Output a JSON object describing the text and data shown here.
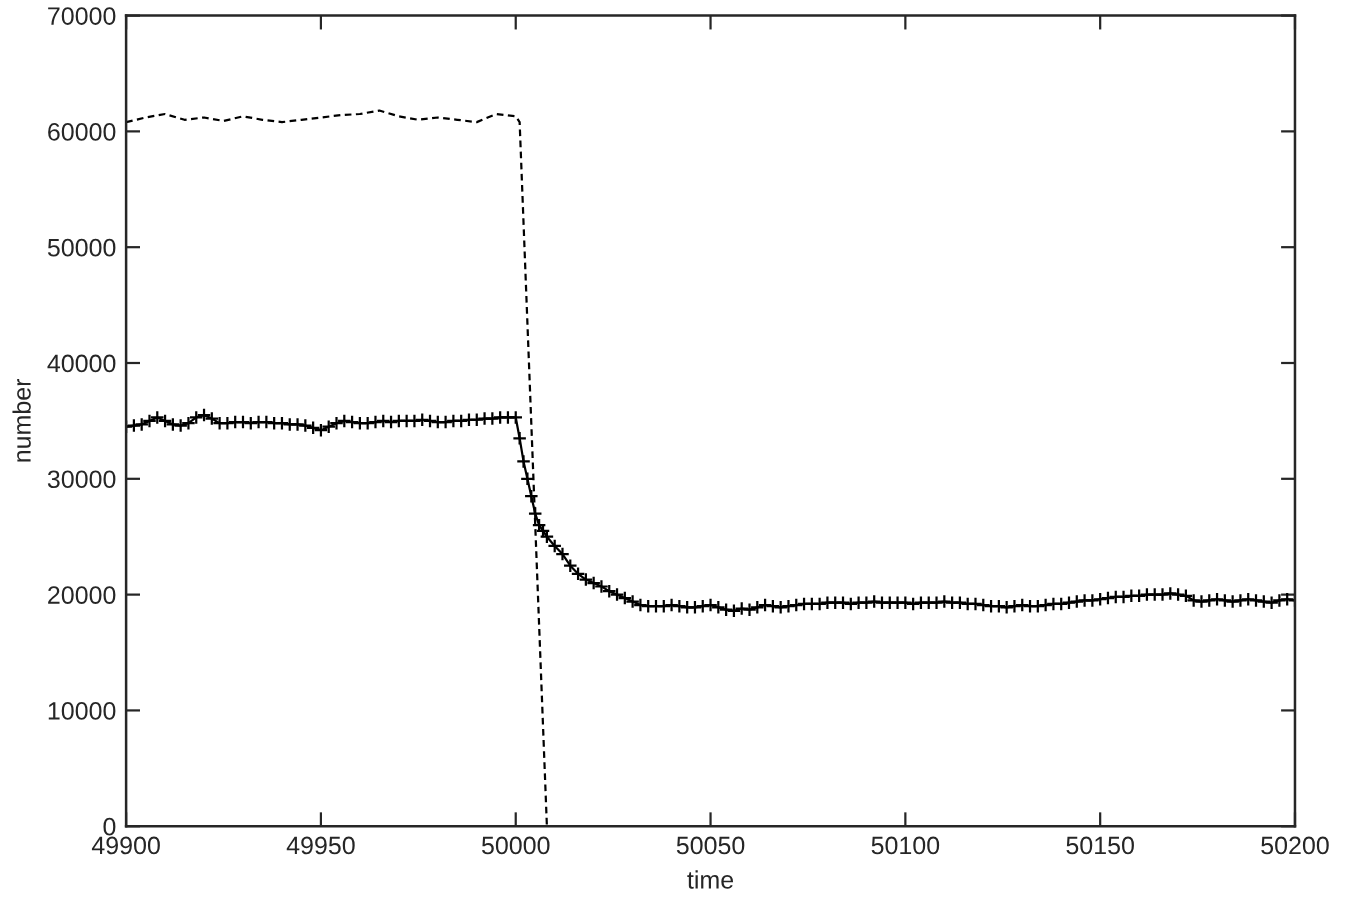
{
  "chart_data": {
    "type": "line",
    "xlabel": "time",
    "ylabel": "number",
    "xlim": [
      49900,
      50200
    ],
    "xticks": [
      49900,
      49950,
      50000,
      50050,
      50100,
      50150,
      50200
    ],
    "ylim": [
      0,
      70000
    ],
    "yticks": [
      0,
      10000,
      20000,
      30000,
      40000,
      50000,
      60000,
      70000
    ],
    "grid": false,
    "series": [
      {
        "color": "#000000",
        "line_style": "dashed",
        "marker": "none",
        "x": [
          49900,
          49905,
          49910,
          49915,
          49920,
          49925,
          49930,
          49935,
          49940,
          49945,
          49950,
          49955,
          49960,
          49965,
          49970,
          49975,
          49980,
          49985,
          49990,
          49995,
          50000,
          50001,
          50008
        ],
        "values": [
          60800,
          61200,
          61500,
          61000,
          61200,
          60900,
          61300,
          61000,
          60800,
          61000,
          61200,
          61400,
          61500,
          61800,
          61300,
          61000,
          61200,
          61000,
          60800,
          61500,
          61300,
          60800,
          0
        ]
      },
      {
        "color": "#000000",
        "line_style": "solid",
        "marker": "cross",
        "x": [
          49900,
          49902,
          49904,
          49906,
          49908,
          49910,
          49912,
          49914,
          49916,
          49918,
          49920,
          49922,
          49924,
          49926,
          49928,
          49930,
          49932,
          49934,
          49936,
          49938,
          49940,
          49942,
          49944,
          49946,
          49948,
          49950,
          49952,
          49954,
          49956,
          49958,
          49960,
          49962,
          49964,
          49966,
          49968,
          49970,
          49972,
          49974,
          49976,
          49978,
          49980,
          49982,
          49984,
          49986,
          49988,
          49990,
          49992,
          49994,
          49996,
          49998,
          50000,
          50001,
          50002,
          50003,
          50004,
          50005,
          50006,
          50007,
          50008,
          50010,
          50012,
          50014,
          50016,
          50018,
          50020,
          50022,
          50024,
          50026,
          50028,
          50030,
          50032,
          50034,
          50036,
          50038,
          50040,
          50042,
          50044,
          50046,
          50048,
          50050,
          50052,
          50054,
          50056,
          50058,
          50060,
          50062,
          50064,
          50066,
          50068,
          50070,
          50072,
          50074,
          50076,
          50078,
          50080,
          50082,
          50084,
          50086,
          50088,
          50090,
          50092,
          50094,
          50096,
          50098,
          50100,
          50102,
          50104,
          50106,
          50108,
          50110,
          50112,
          50114,
          50116,
          50118,
          50120,
          50122,
          50124,
          50126,
          50128,
          50130,
          50132,
          50134,
          50136,
          50138,
          50140,
          50142,
          50144,
          50146,
          50148,
          50150,
          50152,
          50154,
          50156,
          50158,
          50160,
          50162,
          50164,
          50166,
          50168,
          50170,
          50172,
          50174,
          50176,
          50178,
          50180,
          50182,
          50184,
          50186,
          50188,
          50190,
          50192,
          50194,
          50196,
          50198,
          50200
        ],
        "values": [
          34500,
          34600,
          34700,
          35000,
          35300,
          35000,
          34700,
          34600,
          34800,
          35300,
          35500,
          35200,
          34800,
          34800,
          34900,
          34900,
          34800,
          34900,
          34900,
          34800,
          34800,
          34700,
          34700,
          34600,
          34400,
          34200,
          34500,
          34800,
          35000,
          34900,
          34800,
          34800,
          34900,
          35000,
          34900,
          35000,
          35000,
          35000,
          35100,
          35000,
          34900,
          34900,
          35000,
          35000,
          35100,
          35100,
          35200,
          35200,
          35300,
          35300,
          35300,
          33500,
          31500,
          30000,
          28500,
          27000,
          26000,
          25500,
          25000,
          24200,
          23500,
          22500,
          21800,
          21300,
          21000,
          20700,
          20300,
          20000,
          19700,
          19400,
          19100,
          19000,
          19000,
          19000,
          19100,
          19000,
          18900,
          18900,
          19000,
          19100,
          18900,
          18700,
          18600,
          18800,
          18700,
          18900,
          19100,
          19000,
          18900,
          19000,
          19100,
          19200,
          19200,
          19200,
          19300,
          19300,
          19300,
          19200,
          19300,
          19300,
          19400,
          19300,
          19300,
          19300,
          19300,
          19200,
          19300,
          19300,
          19300,
          19400,
          19300,
          19300,
          19200,
          19200,
          19100,
          19000,
          19000,
          18900,
          19000,
          19100,
          19000,
          19000,
          19100,
          19200,
          19200,
          19300,
          19400,
          19500,
          19500,
          19600,
          19700,
          19800,
          19800,
          19900,
          19900,
          20000,
          20000,
          20000,
          20100,
          20000,
          19900,
          19500,
          19400,
          19500,
          19600,
          19500,
          19400,
          19500,
          19600,
          19500,
          19400,
          19300,
          19500,
          19600,
          19500
        ]
      }
    ]
  }
}
